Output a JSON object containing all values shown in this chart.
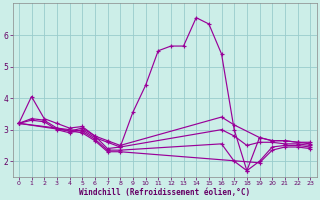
{
  "xlabel": "Windchill (Refroidissement éolien,°C)",
  "bg_color": "#cceee8",
  "line_color": "#990099",
  "grid_color": "#99cccc",
  "xlim": [
    -0.5,
    23.5
  ],
  "ylim": [
    1.5,
    7.0
  ],
  "xticks": [
    0,
    1,
    2,
    3,
    4,
    5,
    6,
    7,
    8,
    9,
    10,
    11,
    12,
    13,
    14,
    15,
    16,
    17,
    18,
    19,
    20,
    21,
    22,
    23
  ],
  "yticks": [
    2,
    3,
    4,
    5,
    6
  ],
  "series": [
    {
      "x": [
        0,
        1,
        2,
        3,
        4,
        5,
        6,
        7,
        8,
        9,
        10,
        11,
        12,
        13,
        14,
        15,
        16,
        17,
        18,
        19,
        20,
        21,
        22,
        23
      ],
      "y": [
        3.2,
        4.05,
        3.35,
        3.2,
        3.05,
        3.1,
        2.8,
        2.4,
        2.45,
        3.55,
        4.4,
        5.5,
        5.65,
        5.65,
        6.55,
        6.35,
        5.4,
        3.0,
        1.7,
        2.75,
        2.65,
        2.65,
        2.6,
        2.55
      ]
    },
    {
      "x": [
        0,
        1,
        2,
        3,
        4,
        5,
        6,
        7,
        8,
        16,
        17,
        19,
        20,
        21,
        22,
        23
      ],
      "y": [
        3.2,
        3.35,
        3.3,
        3.05,
        2.95,
        3.05,
        2.8,
        2.65,
        2.5,
        3.4,
        3.15,
        2.75,
        2.65,
        2.65,
        2.6,
        2.6
      ]
    },
    {
      "x": [
        0,
        1,
        2,
        3,
        4,
        5,
        6,
        7,
        8,
        16,
        17,
        18,
        19,
        20,
        21,
        22,
        23
      ],
      "y": [
        3.2,
        3.3,
        3.25,
        3.0,
        2.9,
        3.0,
        2.75,
        2.6,
        2.45,
        3.0,
        2.8,
        2.5,
        2.6,
        2.6,
        2.55,
        2.55,
        2.5
      ]
    },
    {
      "x": [
        0,
        5,
        6,
        7,
        8,
        16,
        17,
        18,
        19,
        20,
        21,
        22,
        23
      ],
      "y": [
        3.2,
        2.95,
        2.7,
        2.35,
        2.35,
        2.55,
        2.0,
        1.7,
        2.0,
        2.45,
        2.5,
        2.5,
        2.45
      ]
    },
    {
      "x": [
        0,
        5,
        6,
        7,
        8,
        19,
        20,
        21,
        22,
        23
      ],
      "y": [
        3.2,
        2.9,
        2.65,
        2.3,
        2.3,
        1.95,
        2.35,
        2.45,
        2.45,
        2.4
      ]
    }
  ]
}
